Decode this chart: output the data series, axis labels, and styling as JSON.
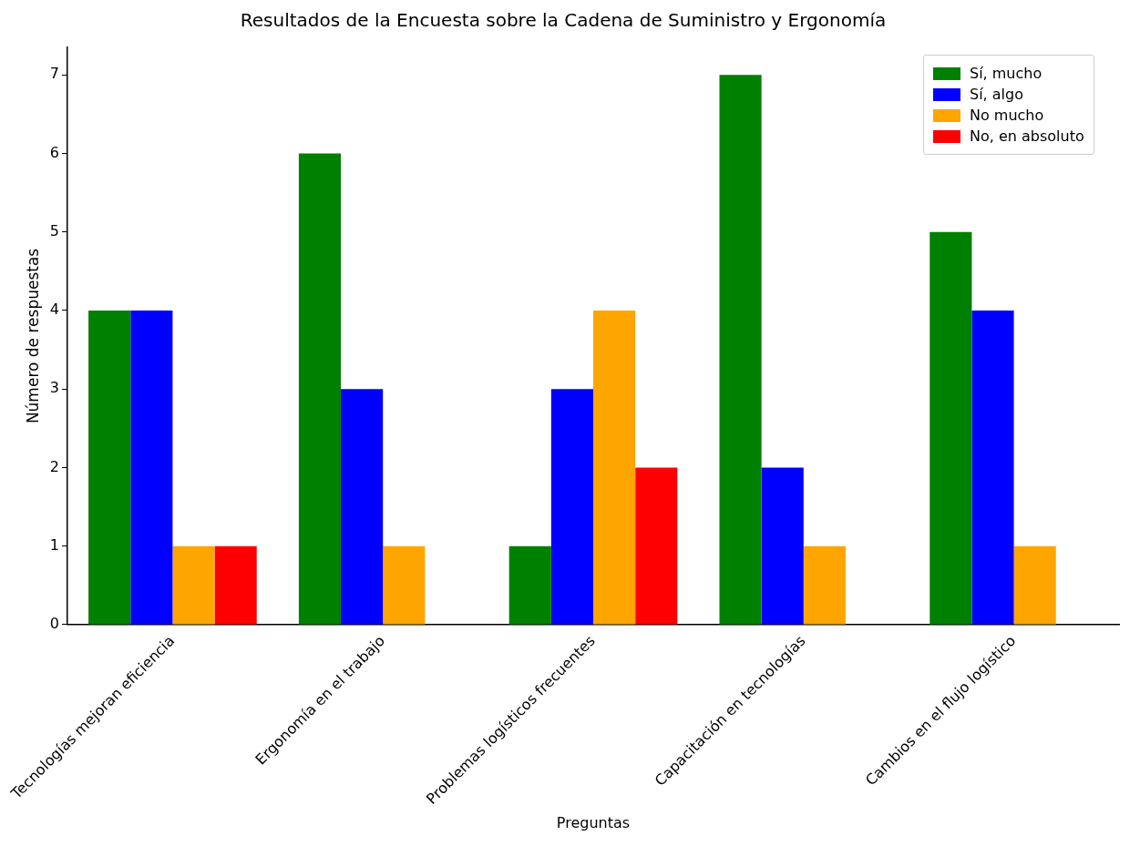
{
  "chart_data": {
    "type": "bar",
    "title": "Resultados de la Encuesta sobre la Cadena de Suministro y Ergonomía",
    "xlabel": "Preguntas",
    "ylabel": "Número de respuestas",
    "categories": [
      "Tecnologías mejoran eficiencia",
      "Ergonomía en el trabajo",
      "Problemas logísticos frecuentes",
      "Capacitación en tecnologías",
      "Cambios en el flujo logístico"
    ],
    "series": [
      {
        "name": "Sí, mucho",
        "color": "#008000",
        "values": [
          4,
          6,
          1,
          7,
          5
        ]
      },
      {
        "name": "Sí, algo",
        "color": "#0000ff",
        "values": [
          4,
          3,
          3,
          2,
          4
        ]
      },
      {
        "name": "No mucho",
        "color": "#ffa500",
        "values": [
          1,
          1,
          4,
          1,
          1
        ]
      },
      {
        "name": "No, en absoluto",
        "color": "#ff0000",
        "values": [
          1,
          0,
          2,
          0,
          0
        ]
      }
    ],
    "ylim": [
      0,
      7.35
    ],
    "yticks": [
      0,
      1,
      2,
      3,
      4,
      5,
      6,
      7
    ],
    "grid": false,
    "legend": "top right"
  }
}
